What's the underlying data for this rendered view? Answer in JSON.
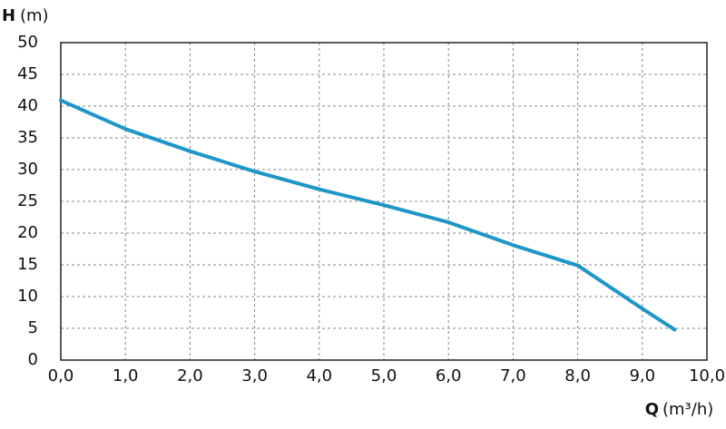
{
  "chart_data": {
    "type": "line",
    "y_label_symbol": "H",
    "y_label_unit": "(m)",
    "x_label_symbol": "Q",
    "x_label_unit": "(m³/h)",
    "x": [
      0,
      1,
      2,
      3,
      4,
      5,
      6,
      7,
      8,
      9,
      9.5
    ],
    "series": [
      {
        "color": "#1e96c8",
        "values": [
          40.9,
          36.4,
          32.9,
          29.7,
          26.9,
          24.4,
          21.7,
          18.1,
          14.9,
          8.1,
          4.8
        ]
      }
    ],
    "xlim": [
      0,
      10
    ],
    "ylim": [
      0,
      50
    ],
    "xticks": [
      {
        "value": 0,
        "label": "0,0"
      },
      {
        "value": 1,
        "label": "1,0"
      },
      {
        "value": 2,
        "label": "2,0"
      },
      {
        "value": 3,
        "label": "3,0"
      },
      {
        "value": 4,
        "label": "4,0"
      },
      {
        "value": 5,
        "label": "5,0"
      },
      {
        "value": 6,
        "label": "6,0"
      },
      {
        "value": 7,
        "label": "7,0"
      },
      {
        "value": 8,
        "label": "8,0"
      },
      {
        "value": 9,
        "label": "9,0"
      },
      {
        "value": 10,
        "label": "10,0"
      }
    ],
    "yticks": [
      0,
      5,
      10,
      15,
      20,
      25,
      30,
      35,
      40,
      45,
      50
    ],
    "grid": true
  }
}
